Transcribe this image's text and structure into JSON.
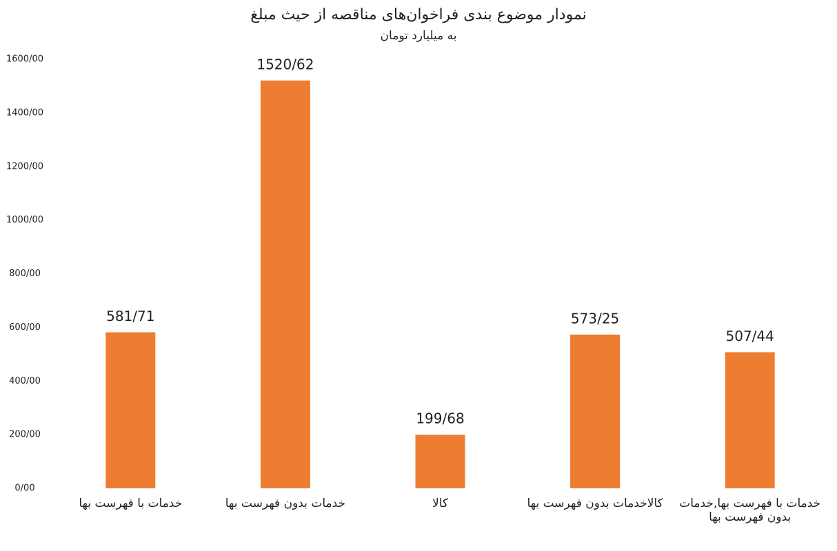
{
  "chart_data": {
    "type": "bar",
    "title": "نمودار موضوع بندی فراخوان‌های مناقصه از حیث مبلغ",
    "subtitle": "به میلیارد تومان",
    "categories": [
      "خدمات با فهرست بها",
      "خدمات بدون فهرست بها",
      "کالا",
      "کالاخدمات بدون فهرست بها",
      "خدمات با فهرست بها,خدمات بدون فهرست بها"
    ],
    "values": [
      581.71,
      1520.62,
      199.68,
      573.25,
      507.44
    ],
    "value_labels": [
      "581/71",
      "1520/62",
      "199/68",
      "573/25",
      "507/44"
    ],
    "color": "#ed7d31",
    "ylim": [
      0,
      1600
    ],
    "yticks": [
      {
        "value": 0,
        "label": "0/00"
      },
      {
        "value": 200,
        "label": "200/00"
      },
      {
        "value": 400,
        "label": "400/00"
      },
      {
        "value": 600,
        "label": "600/00"
      },
      {
        "value": 800,
        "label": "800/00"
      },
      {
        "value": 1000,
        "label": "1000/00"
      },
      {
        "value": 1200,
        "label": "1200/00"
      },
      {
        "value": 1400,
        "label": "1400/00"
      },
      {
        "value": 1600,
        "label": "1600/00"
      }
    ],
    "grid": false
  }
}
